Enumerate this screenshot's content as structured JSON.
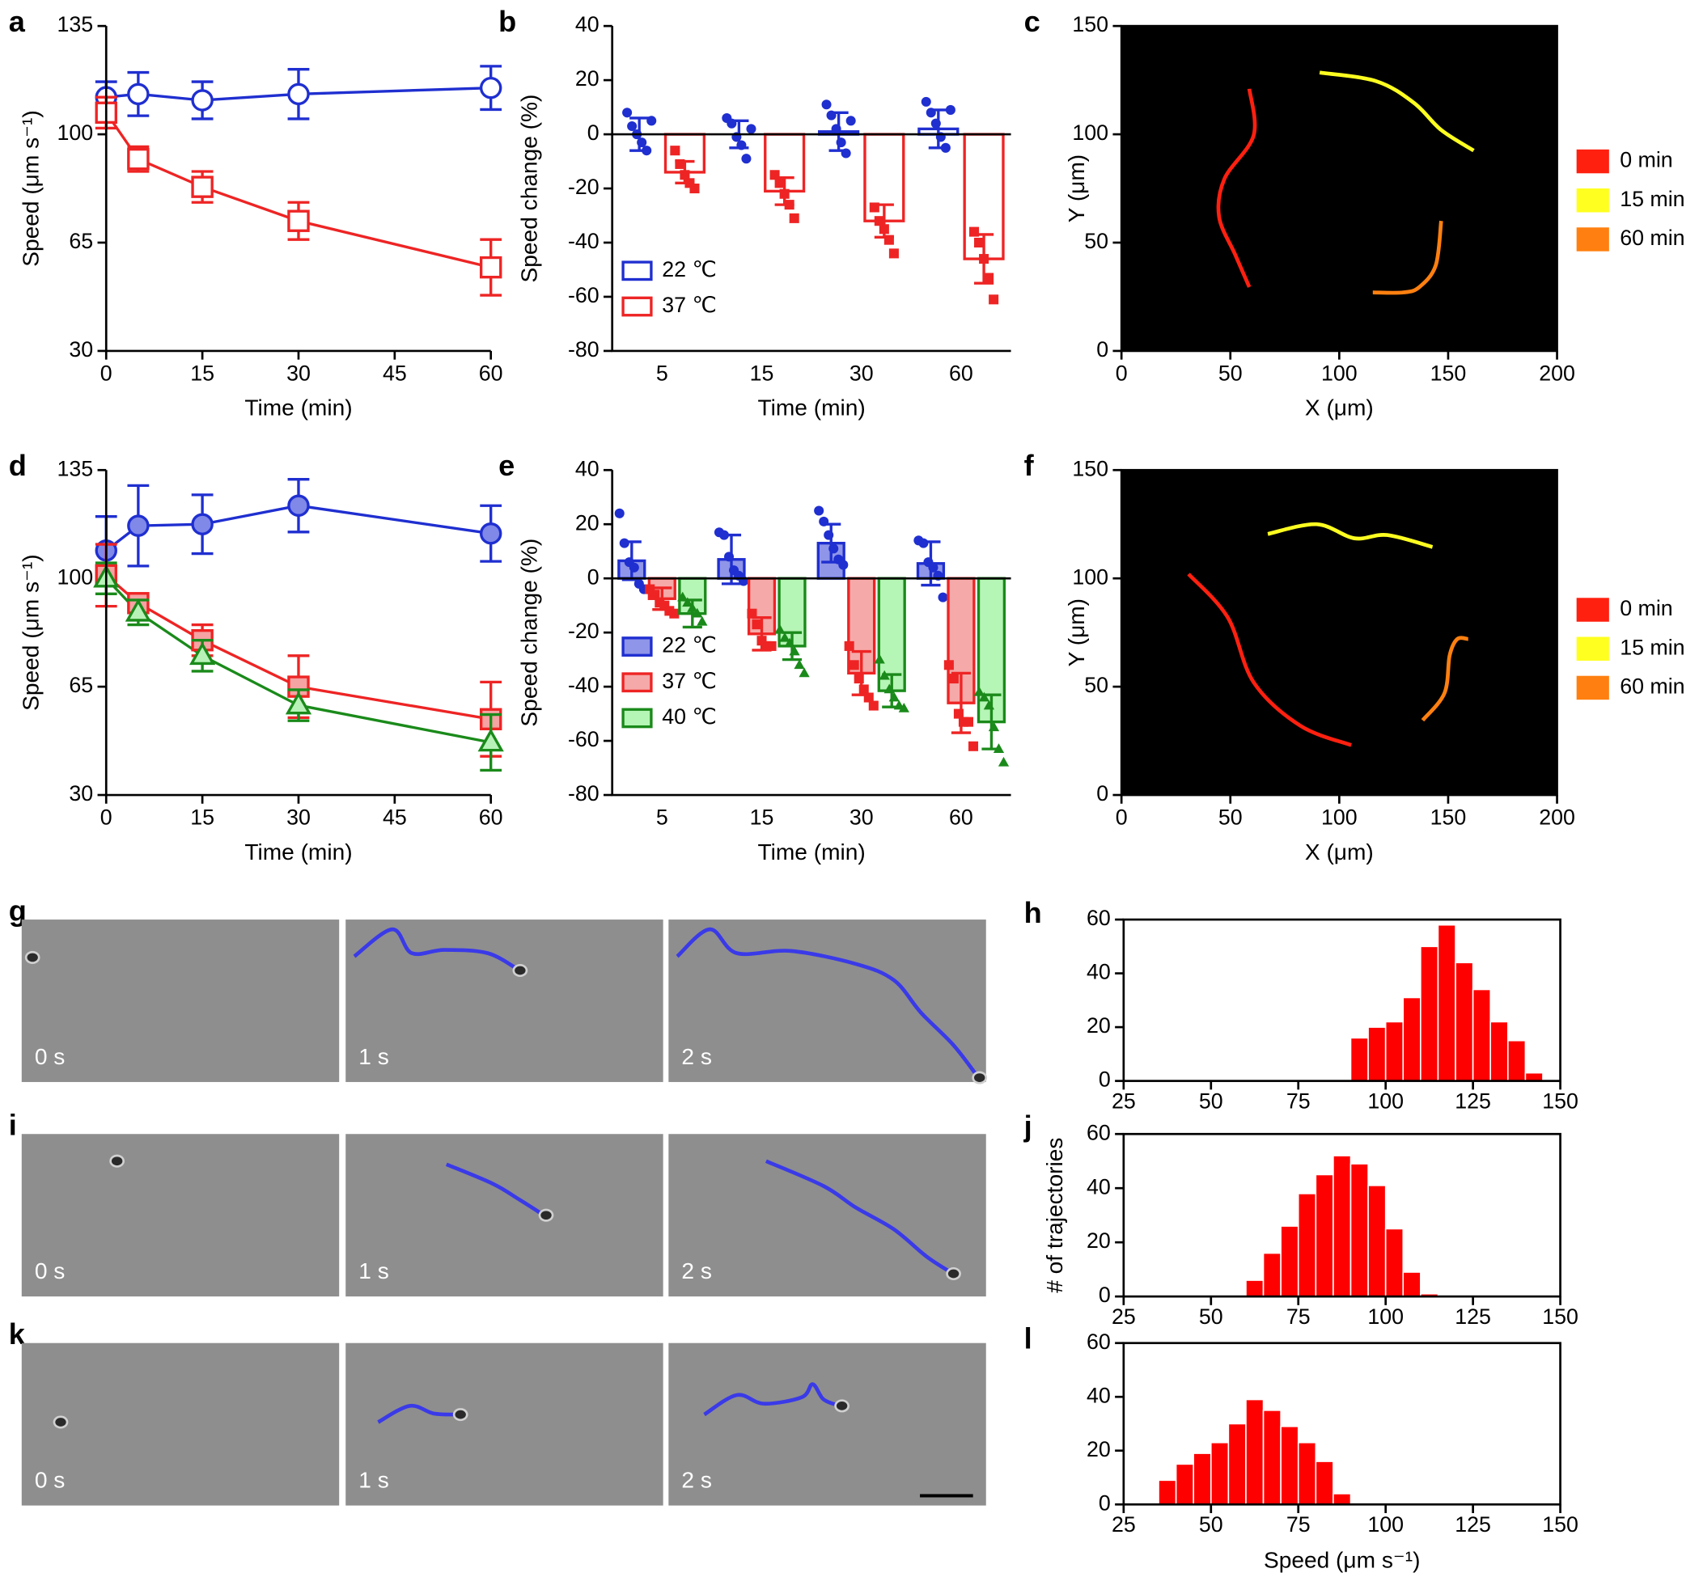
{
  "chart_data": [
    {
      "panel": "a",
      "type": "line",
      "x": [
        0,
        5,
        15,
        30,
        60
      ],
      "xlim": [
        0,
        60
      ],
      "xticks": [
        0,
        15,
        30,
        45,
        60
      ],
      "ylim": [
        30,
        135
      ],
      "yticks": [
        30,
        65,
        100,
        135
      ],
      "xlabel": "Time (min)",
      "ylabel": "Speed (μm s⁻¹)",
      "series": [
        {
          "color": "#1f2fd0",
          "fill": "#ffffff",
          "marker": "circle",
          "values": [
            112,
            113,
            111,
            113,
            115
          ],
          "errors": [
            5,
            7,
            6,
            8,
            7
          ]
        },
        {
          "color": "#ee2424",
          "fill": "#ffffff",
          "marker": "square",
          "values": [
            107,
            92,
            83,
            72,
            57
          ],
          "errors": [
            5,
            4,
            5,
            6,
            9
          ]
        }
      ]
    },
    {
      "panel": "b",
      "type": "bar",
      "categories": [
        "5",
        "15",
        "30",
        "60"
      ],
      "ylim": [
        -80,
        40
      ],
      "yticks": [
        -80,
        -60,
        -40,
        -20,
        0,
        20,
        40
      ],
      "xlabel": "Time (min)",
      "ylabel": "Speed change (%)",
      "legend": "lower left",
      "series": [
        {
          "name": "22 ℃",
          "color": "#1f2fd0",
          "fill": "#ffffff",
          "marker": "circle",
          "values": [
            0,
            0,
            1,
            2
          ],
          "errors": [
            6,
            5,
            7,
            7
          ],
          "points": [
            [
              8,
              3,
              0,
              -3,
              -6,
              5
            ],
            [
              6,
              4,
              -1,
              -4,
              -9,
              2
            ],
            [
              11,
              7,
              2,
              -3,
              -7,
              5
            ],
            [
              12,
              8,
              4,
              -1,
              -5,
              9
            ]
          ]
        },
        {
          "name": "37 ℃",
          "color": "#ee2424",
          "fill": "#ffffff",
          "marker": "square",
          "values": [
            -14,
            -21,
            -32,
            -46
          ],
          "errors": [
            4,
            5,
            6,
            9
          ],
          "points": [
            [
              -6,
              -11,
              -15,
              -18,
              -20
            ],
            [
              -15,
              -18,
              -22,
              -26,
              -31
            ],
            [
              -27,
              -32,
              -35,
              -39,
              -44
            ],
            [
              -36,
              -40,
              -46,
              -53,
              -61
            ]
          ]
        }
      ]
    },
    {
      "panel": "c",
      "type": "trajectory",
      "xlim": [
        0,
        200
      ],
      "xticks": [
        0,
        50,
        100,
        150,
        200
      ],
      "ylim": [
        0,
        150
      ],
      "yticks": [
        0,
        50,
        100,
        150
      ],
      "xlabel": "X (μm)",
      "ylabel": "Y (μm)",
      "background": "#000000",
      "legend": "outside right",
      "series": [
        {
          "name": "0 min",
          "color": "#ff2010",
          "x": [
            58.7,
            60.7,
            47.3,
            44.8,
            52.2,
            58.7
          ],
          "values": [
            121,
            99.5,
            79.5,
            62,
            44.5,
            29.5
          ]
        },
        {
          "name": "15 min",
          "color": "#ffff20",
          "x": [
            91,
            117,
            134.3,
            146.8,
            161.7
          ],
          "values": [
            128.5,
            124.5,
            114.5,
            102,
            92.5
          ]
        },
        {
          "name": "60 min",
          "color": "#ff8010",
          "x": [
            146.8,
            144.3,
            136.8,
            129.4,
            115.4
          ],
          "values": [
            60,
            39.5,
            29.5,
            27,
            27
          ]
        }
      ]
    },
    {
      "panel": "d",
      "type": "line",
      "x": [
        0,
        5,
        15,
        30,
        60
      ],
      "xlim": [
        0,
        60
      ],
      "xticks": [
        0,
        15,
        30,
        45,
        60
      ],
      "ylim": [
        30,
        135
      ],
      "yticks": [
        30,
        65,
        100,
        135
      ],
      "xlabel": "Time (min)",
      "ylabel": "Speed (μm s⁻¹)",
      "series": [
        {
          "color": "#1f2fd0",
          "fill": "#8088e8",
          "marker": "circle",
          "values": [
            109,
            117,
            117.5,
            123.5,
            114.5
          ],
          "errors": [
            11,
            13,
            9.5,
            8.5,
            9
          ]
        },
        {
          "color": "#ee2424",
          "fill": "#f5a3a3",
          "marker": "square",
          "values": [
            101,
            92,
            80,
            65,
            54.5
          ],
          "errors": [
            10,
            3,
            5,
            10,
            12
          ]
        },
        {
          "color": "#1a8a1a",
          "fill": "#b8f2b8",
          "marker": "triangle",
          "values": [
            100,
            89,
            75,
            59,
            47
          ],
          "errors": [
            5,
            4,
            5,
            5,
            9
          ]
        }
      ]
    },
    {
      "panel": "e",
      "type": "bar",
      "categories": [
        "5",
        "15",
        "30",
        "60"
      ],
      "ylim": [
        -80,
        40
      ],
      "yticks": [
        -80,
        -60,
        -40,
        -20,
        0,
        20,
        40
      ],
      "xlabel": "Time (min)",
      "ylabel": "Speed change (%)",
      "legend": "lower left",
      "series": [
        {
          "name": "22 ℃",
          "color": "#1f2fd0",
          "fill": "#8f95e8",
          "marker": "circle",
          "values": [
            6.5,
            7,
            13,
            5.5
          ],
          "errors": [
            7,
            9,
            7,
            8
          ],
          "points": [
            [
              24,
              13,
              6,
              4,
              -2,
              -4
            ],
            [
              17,
              16,
              8,
              3,
              1,
              -1
            ],
            [
              25,
              21,
              16,
              11,
              7,
              5
            ],
            [
              14,
              13,
              6,
              4,
              1,
              -7
            ]
          ]
        },
        {
          "name": "37 ℃",
          "color": "#ee2424",
          "fill": "#f6a9a9",
          "marker": "square",
          "values": [
            -7.5,
            -20.5,
            -35,
            -46
          ],
          "errors": [
            4,
            6,
            8,
            11
          ],
          "points": [
            [
              -4,
              -6,
              -9,
              -10,
              -12,
              -13
            ],
            [
              -13,
              -17,
              -23,
              -25,
              -25
            ],
            [
              -25,
              -32,
              -37,
              -41,
              -44,
              -47
            ],
            [
              -32,
              -37,
              -50,
              -53,
              -53,
              -62
            ]
          ]
        },
        {
          "name": "40 ℃",
          "color": "#1a8a1a",
          "fill": "#b5f5b5",
          "marker": "triangle",
          "values": [
            -13,
            -25,
            -41.5,
            -53
          ],
          "errors": [
            5,
            5,
            6,
            10
          ],
          "points": [
            [
              -7,
              -9,
              -11,
              -13,
              -16
            ],
            [
              -19,
              -22,
              -24,
              -27,
              -32,
              -35
            ],
            [
              -30,
              -36,
              -41,
              -44,
              -47,
              -48
            ],
            [
              -42,
              -44,
              -47,
              -55,
              -63,
              -68
            ]
          ]
        }
      ]
    },
    {
      "panel": "f",
      "type": "trajectory",
      "xlim": [
        0,
        200
      ],
      "xticks": [
        0,
        50,
        100,
        150,
        200
      ],
      "ylim": [
        0,
        150
      ],
      "yticks": [
        0,
        50,
        100,
        150
      ],
      "xlabel": "X (μm)",
      "ylabel": "Y (μm)",
      "background": "#000000",
      "legend": "outside right",
      "series": [
        {
          "name": "0 min",
          "color": "#ff2010",
          "x": [
            30.8,
            48.8,
            60.7,
            82.1,
            105.5
          ],
          "values": [
            102,
            82,
            52,
            32,
            23
          ]
        },
        {
          "name": "15 min",
          "color": "#ffff20",
          "x": [
            67.2,
            89.6,
            107,
            122,
            142.8
          ],
          "values": [
            120.5,
            125,
            118.5,
            120,
            114.5
          ]
        },
        {
          "name": "60 min",
          "color": "#ff8010",
          "x": [
            138.3,
            148.3,
            150.7,
            154.2,
            159.2
          ],
          "values": [
            34.5,
            47,
            64.5,
            72,
            72
          ]
        }
      ]
    },
    {
      "panel": "h",
      "type": "histogram",
      "color": "#ff0000",
      "bins": [
        90,
        95,
        100,
        105,
        110,
        115,
        120,
        125,
        130,
        135,
        140,
        145
      ],
      "values": [
        16,
        20,
        22,
        31,
        50,
        58,
        44,
        34,
        22,
        15,
        3
      ],
      "xlim": [
        25,
        150
      ],
      "xticks": [
        25,
        50,
        75,
        100,
        125,
        150
      ],
      "ylim": [
        0,
        60
      ],
      "yticks": [
        0,
        20,
        40,
        60
      ]
    },
    {
      "panel": "j",
      "type": "histogram",
      "color": "#ff0000",
      "bins": [
        60,
        65,
        70,
        75,
        80,
        85,
        90,
        95,
        100,
        105,
        110,
        115
      ],
      "values": [
        6,
        16,
        26,
        38,
        45,
        52,
        49,
        41,
        25,
        9,
        1
      ],
      "xlim": [
        25,
        150
      ],
      "xticks": [
        25,
        50,
        75,
        100,
        125,
        150
      ],
      "ylim": [
        0,
        60
      ],
      "yticks": [
        0,
        20,
        40,
        60
      ],
      "ylabel": "# of trajectories"
    },
    {
      "panel": "l",
      "type": "histogram",
      "color": "#ff0000",
      "bins": [
        35,
        40,
        45,
        50,
        55,
        60,
        65,
        70,
        75,
        80,
        85,
        90
      ],
      "values": [
        9,
        15,
        19,
        23,
        30,
        39,
        35,
        29,
        23,
        16,
        4
      ],
      "xlim": [
        25,
        150
      ],
      "xticks": [
        25,
        50,
        75,
        100,
        125,
        150
      ],
      "ylim": [
        0,
        60
      ],
      "yticks": [
        0,
        20,
        40,
        60
      ],
      "xlabel": "Speed (μm s⁻¹)"
    }
  ],
  "image_rows": [
    {
      "panel": "g",
      "frames": [
        "0 s",
        "1 s",
        "2 s"
      ]
    },
    {
      "panel": "i",
      "frames": [
        "0 s",
        "1 s",
        "2 s"
      ]
    },
    {
      "panel": "k",
      "frames": [
        "0 s",
        "1 s",
        "2 s"
      ]
    }
  ]
}
